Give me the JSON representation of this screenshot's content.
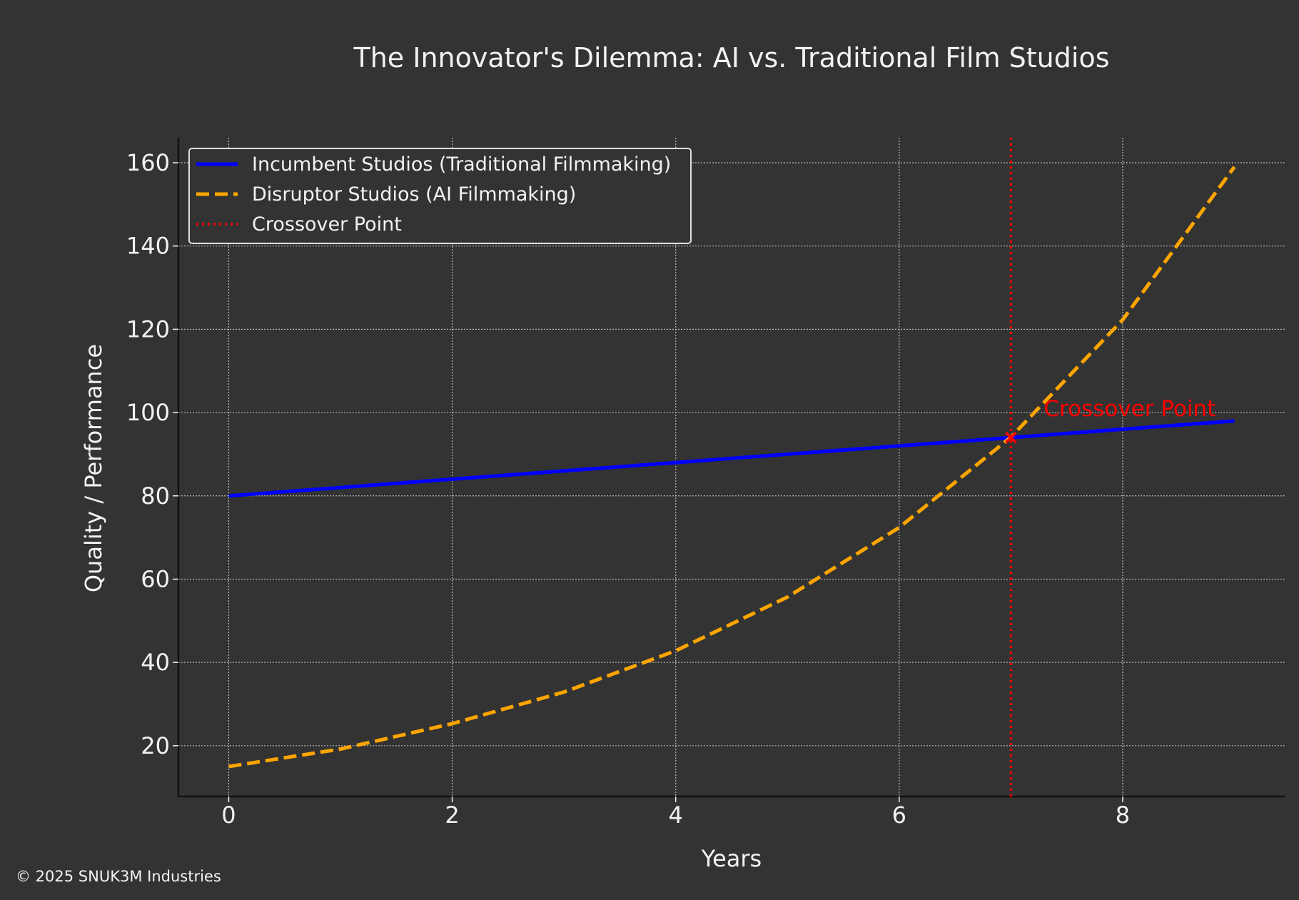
{
  "chart_data": {
    "type": "line",
    "title": "The Innovator's Dilemma: AI vs. Traditional Film Studios",
    "xlabel": "Years",
    "ylabel": "Quality / Performance",
    "xlim": [
      -0.45,
      9.45
    ],
    "ylim": [
      7.8,
      166
    ],
    "xticks": [
      0,
      2,
      4,
      6,
      8
    ],
    "yticks": [
      20,
      40,
      60,
      80,
      100,
      120,
      140,
      160
    ],
    "grid": true,
    "legend_position": "top-left",
    "series": [
      {
        "name": "Incumbent Studios (Traditional Filmmaking)",
        "color": "#0000ff",
        "style": "solid",
        "x": [
          0,
          1,
          2,
          3,
          4,
          5,
          6,
          7,
          8,
          9
        ],
        "values": [
          80,
          82,
          84,
          86,
          88,
          90,
          92,
          94,
          96,
          98
        ]
      },
      {
        "name": "Disruptor Studios (AI Filmmaking)",
        "color": "#ffa500",
        "style": "dashed",
        "x": [
          0,
          1,
          2,
          3,
          4,
          5,
          6,
          7,
          8,
          9
        ],
        "values": [
          15,
          19.2,
          25.3,
          32.9,
          42.8,
          55.7,
          72.4,
          94.1,
          122.3,
          159
        ]
      }
    ],
    "crossover": {
      "legend_label": "Crossover Point",
      "x": 7,
      "y": 94,
      "color": "#ff0000",
      "annotation": "Crossover Point"
    }
  },
  "footer": {
    "copyright": "© 2025 SNUK3M Industries"
  }
}
